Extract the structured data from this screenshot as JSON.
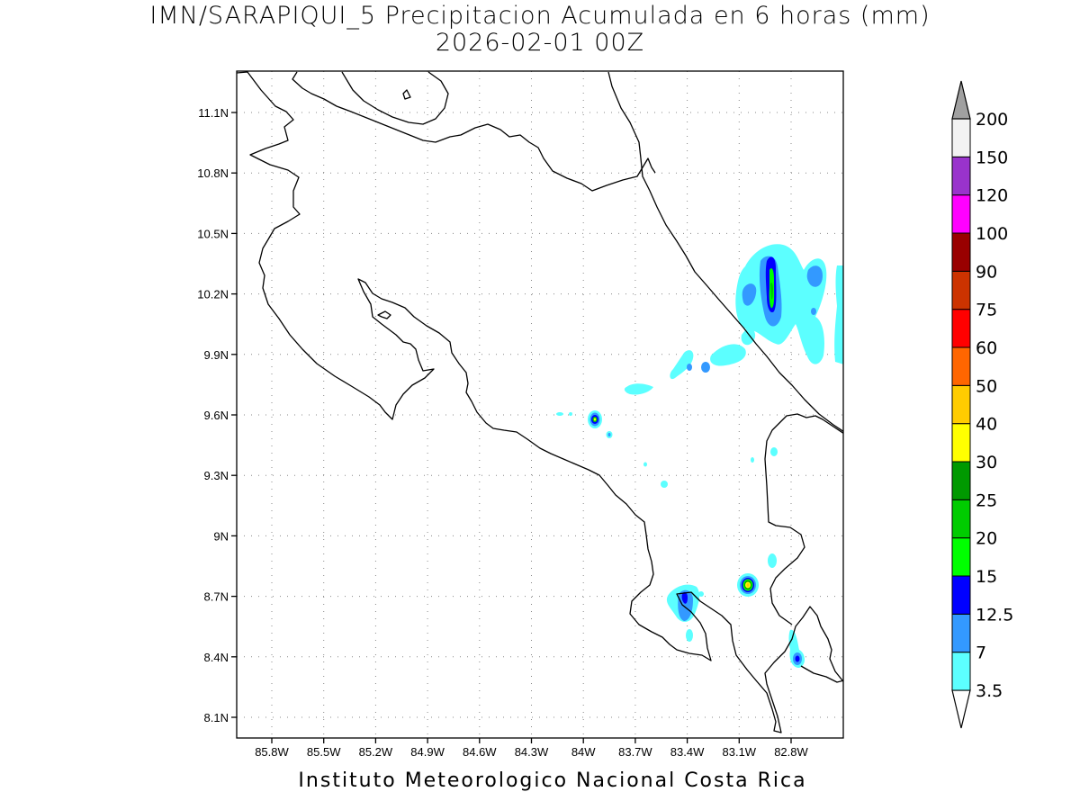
{
  "header": {
    "title": "IMN/SARAPIQUI_5 Precipitacion Acumulada en 6 horas (mm)",
    "date": "2026-02-01 00Z"
  },
  "footer": {
    "credit": "Instituto Meteorologico Nacional Costa Rica"
  },
  "map": {
    "lat_ticks": [
      "11.1N",
      "10.8N",
      "10.5N",
      "10.2N",
      "9.9N",
      "9.6N",
      "9.3N",
      "9N",
      "8.7N",
      "8.4N",
      "8.1N"
    ],
    "lon_ticks": [
      "85.8W",
      "85.5W",
      "85.2W",
      "84.9W",
      "84.6W",
      "84.3W",
      "84W",
      "83.7W",
      "83.4W",
      "83.1W",
      "82.8W"
    ],
    "grid": true,
    "coastline_color": "#000000"
  },
  "colorbar": {
    "levels": [
      "3.5",
      "7",
      "12.5",
      "15",
      "20",
      "25",
      "30",
      "40",
      "50",
      "60",
      "75",
      "90",
      "100",
      "120",
      "150",
      "200"
    ],
    "colors": [
      "#5cffff",
      "#3399ff",
      "#0000ff",
      "#00ff00",
      "#00cc00",
      "#009900",
      "#ffff00",
      "#ffcc00",
      "#ff6600",
      "#ff0000",
      "#cc3300",
      "#990000",
      "#ff00ff",
      "#9933cc",
      "#f2f2f2",
      "#a0a0a0"
    ]
  },
  "precip_cells": [
    {
      "name": "northeast-band",
      "level": "25"
    },
    {
      "name": "central-cell",
      "level": "40"
    },
    {
      "name": "southeast-cell",
      "level": "40"
    },
    {
      "name": "osa-cell",
      "level": "12.5"
    },
    {
      "name": "southeast-coast-cell",
      "level": "12.5"
    }
  ]
}
